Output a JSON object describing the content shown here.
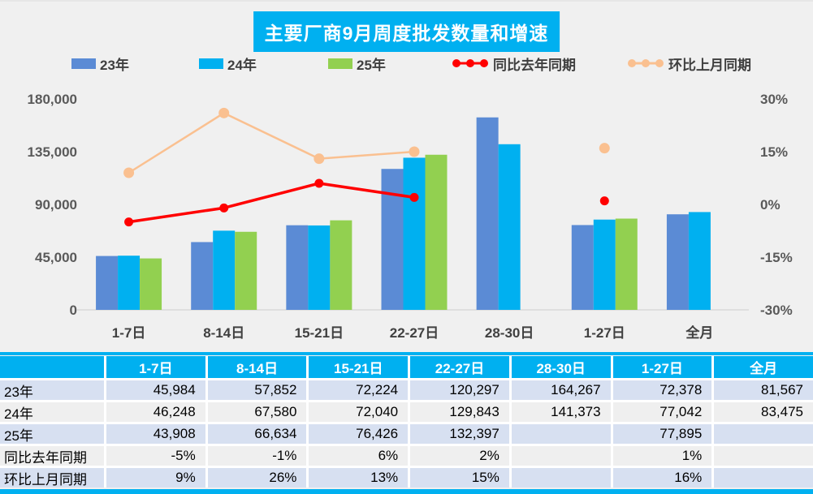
{
  "title": "主要厂商9月周度批发数量和增速",
  "colors": {
    "cyan": "#00B0F0",
    "blue": "#5B8BD5",
    "light_blue": "#00B0F0",
    "green": "#92D050",
    "red": "#FF0000",
    "peach": "#FAC090",
    "axis_text": "#595959",
    "category_text": "#404040",
    "axis_line": "#D9D9D9",
    "row_blue": "#D7E0F1",
    "row_gray": "#EFEFEF"
  },
  "legend": {
    "items": [
      {
        "label": "23年",
        "type": "bar",
        "color_key": "blue"
      },
      {
        "label": "24年",
        "type": "bar",
        "color_key": "light_blue"
      },
      {
        "label": "25年",
        "type": "bar",
        "color_key": "green"
      },
      {
        "label": "同比去年同期",
        "type": "line",
        "color_key": "red"
      },
      {
        "label": "环比上月同期",
        "type": "line",
        "color_key": "peach"
      }
    ]
  },
  "chart_data": {
    "type": "bar",
    "subtype": "grouped bars + two percentage lines (combo chart)",
    "title": "主要厂商9月周度批发数量和增速",
    "categories": [
      "1-7日",
      "8-14日",
      "15-21日",
      "22-27日",
      "28-30日",
      "1-27日",
      "全月"
    ],
    "series": [
      {
        "name": "23年",
        "type": "bar",
        "axis": "left",
        "color_key": "blue",
        "values": [
          45984,
          57852,
          72224,
          120297,
          164267,
          72378,
          81567
        ]
      },
      {
        "name": "24年",
        "type": "bar",
        "axis": "left",
        "color_key": "light_blue",
        "values": [
          46248,
          67580,
          72040,
          129843,
          141373,
          77042,
          83475
        ]
      },
      {
        "name": "25年",
        "type": "bar",
        "axis": "left",
        "color_key": "green",
        "values": [
          43908,
          66634,
          76426,
          132397,
          null,
          77895,
          null
        ]
      },
      {
        "name": "同比去年同期",
        "type": "line",
        "axis": "right",
        "color_key": "red",
        "values": [
          -5,
          -1,
          6,
          2,
          null,
          1,
          null
        ]
      },
      {
        "name": "环比上月同期",
        "type": "line",
        "axis": "right",
        "color_key": "peach",
        "values": [
          9,
          26,
          13,
          15,
          null,
          16,
          null
        ]
      }
    ],
    "left_axis": {
      "min": 0,
      "max": 180000,
      "step": 45000,
      "tick_labels": [
        "0",
        "45,000",
        "90,000",
        "135,000",
        "180,000"
      ]
    },
    "right_axis": {
      "min": -30,
      "max": 30,
      "step": 15,
      "tick_labels": [
        "-30%",
        "-15%",
        "0%",
        "15%",
        "30%"
      ]
    },
    "grid": false,
    "legend_position": "top"
  },
  "table": {
    "header": [
      "",
      "1-7日",
      "8-14日",
      "15-21日",
      "22-27日",
      "28-30日",
      "1-27日",
      "全月"
    ],
    "rows": [
      {
        "label": "23年",
        "cells": [
          "45,984",
          "57,852",
          "72,224",
          "120,297",
          "164,267",
          "72,378",
          "81,567"
        ]
      },
      {
        "label": "24年",
        "cells": [
          "46,248",
          "67,580",
          "72,040",
          "129,843",
          "141,373",
          "77,042",
          "83,475"
        ]
      },
      {
        "label": "25年",
        "cells": [
          "43,908",
          "66,634",
          "76,426",
          "132,397",
          "",
          "77,895",
          ""
        ]
      },
      {
        "label": "同比去年同期",
        "cells": [
          "-5%",
          "-1%",
          "6%",
          "2%",
          "",
          "1%",
          ""
        ]
      },
      {
        "label": "环比上月同期",
        "cells": [
          "9%",
          "26%",
          "13%",
          "15%",
          "",
          "16%",
          ""
        ]
      }
    ]
  }
}
